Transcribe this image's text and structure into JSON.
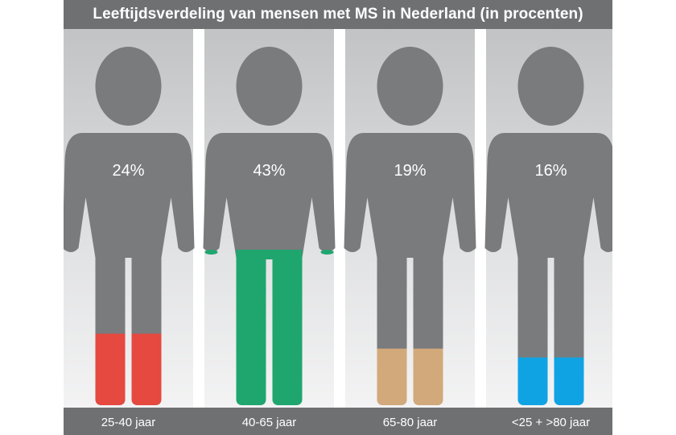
{
  "chart_data": {
    "type": "bar",
    "title": "Leeftijdsverdeling van mensen met MS in Nederland (in procenten)",
    "categories": [
      "25-40 jaar",
      "40-65 jaar",
      "65-80 jaar",
      "<25 + >80 jaar"
    ],
    "values": [
      24,
      43,
      19,
      16
    ],
    "value_labels": [
      "24%",
      "43%",
      "19%",
      "16%"
    ],
    "colors": [
      "#e5493f",
      "#1fa66f",
      "#d2a97a",
      "#10a3e4"
    ],
    "ylim": [
      0,
      100
    ]
  }
}
